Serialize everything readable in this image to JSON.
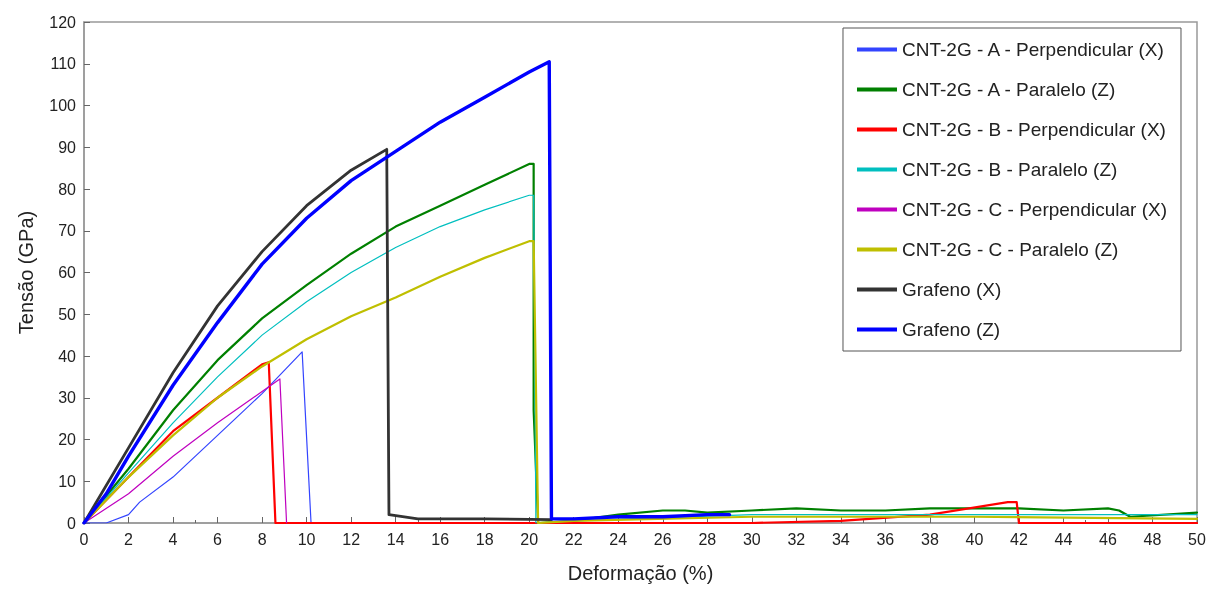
{
  "chart_data": {
    "type": "line",
    "xlabel": "Deformação (%)",
    "ylabel": "Tensão (GPa)",
    "xlim": [
      0,
      50
    ],
    "xticks": [
      0,
      2,
      4,
      6,
      8,
      10,
      12,
      14,
      16,
      18,
      20,
      22,
      24,
      26,
      28,
      30,
      32,
      34,
      36,
      38,
      40,
      42,
      44,
      46,
      48,
      50
    ],
    "ylim": [
      0,
      120
    ],
    "yticks": [
      0,
      10,
      20,
      30,
      40,
      50,
      60,
      70,
      80,
      90,
      100,
      110,
      120
    ],
    "grid": false,
    "legend": "top right",
    "marker": "none",
    "line_style": "solid",
    "series": [
      {
        "name": "CNT-2G - A - Perpendicular (X)",
        "color": "#3344ff",
        "x": [
          0,
          1,
          2,
          2.5,
          4,
          6,
          8,
          9.8,
          10.2
        ],
        "values": [
          0,
          0,
          2,
          5,
          11,
          21,
          31,
          41,
          0
        ]
      },
      {
        "name": "CNT-2G - A - Paralelo (Z)",
        "color": "#008000",
        "x": [
          0,
          2,
          4,
          6,
          8,
          10,
          12,
          14,
          16,
          18,
          20,
          20.2,
          20.2,
          20.4,
          22,
          24,
          26,
          27,
          28,
          30,
          32,
          34,
          36,
          38,
          40,
          42,
          44,
          46,
          46.5,
          47,
          50
        ],
        "values": [
          0,
          13,
          27,
          39,
          49,
          57,
          64.5,
          71,
          76,
          81,
          86,
          86,
          27,
          0,
          0.5,
          2,
          3,
          3,
          2.5,
          3,
          3.5,
          3,
          3,
          3.5,
          3.5,
          3.5,
          3,
          3.5,
          3,
          1.5,
          2.5
        ]
      },
      {
        "name": "CNT-2G - B - Perpendicular (X)",
        "color": "#ff0000",
        "x": [
          0,
          2,
          4,
          6,
          8,
          8.3,
          8.6,
          20,
          30,
          34,
          38,
          41.5,
          41.9,
          42,
          50
        ],
        "values": [
          0,
          11,
          22,
          30,
          38,
          38.5,
          0,
          0,
          0,
          0.5,
          2,
          5,
          5,
          0,
          0
        ]
      },
      {
        "name": "CNT-2G - B - Paralelo (Z)",
        "color": "#00bfbf",
        "x": [
          0,
          2,
          4,
          6,
          8,
          10,
          12,
          14,
          16,
          18,
          20,
          20.2,
          20.3,
          22,
          30,
          40,
          46,
          50
        ],
        "values": [
          0,
          12,
          24,
          35,
          45,
          53,
          60,
          66,
          71,
          75,
          78.5,
          78.5,
          0,
          0.5,
          2,
          2,
          2,
          2
        ]
      },
      {
        "name": "CNT-2G - C - Perpendicular (X)",
        "color": "#bf00bf",
        "x": [
          0,
          2,
          4,
          6,
          8,
          8.8,
          9.1
        ],
        "values": [
          0,
          7,
          16,
          24,
          31.5,
          34.5,
          0
        ]
      },
      {
        "name": "CNT-2G - C - Paralelo (Z)",
        "color": "#bfbf00",
        "x": [
          0,
          2,
          4,
          6,
          8,
          10,
          12,
          14,
          16,
          18,
          20,
          20.2,
          20.4,
          22,
          30,
          40,
          50
        ],
        "values": [
          0,
          11,
          21,
          30,
          37.5,
          44,
          49.5,
          54,
          59,
          63.5,
          67.5,
          67.5,
          0,
          0.5,
          1.5,
          1.5,
          1
        ]
      },
      {
        "name": "Grafeno (X)",
        "color": "#333333",
        "x": [
          0,
          2,
          4,
          6,
          8,
          10,
          12,
          13.6,
          13.7,
          15,
          18,
          21
        ],
        "values": [
          0,
          18,
          36,
          52,
          65,
          76,
          84.5,
          89.5,
          2,
          1,
          1,
          0.8
        ]
      },
      {
        "name": "Grafeno (Z)",
        "color": "#0000ff",
        "x": [
          0,
          1,
          2,
          4,
          6,
          8,
          10,
          12,
          14,
          16,
          18,
          20,
          20.9,
          21,
          22,
          24,
          26,
          28,
          29
        ],
        "values": [
          0,
          7,
          16,
          33,
          48,
          62,
          73,
          82,
          89,
          96,
          102,
          108,
          110.5,
          1,
          1,
          1.5,
          1.5,
          2,
          2
        ]
      }
    ]
  }
}
